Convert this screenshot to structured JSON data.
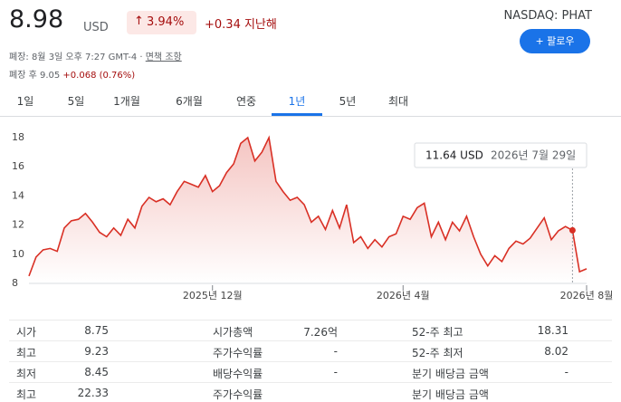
{
  "header": {
    "price": "8.98",
    "currency": "USD",
    "change_pct": "3.94%",
    "change_abs": "+0.34 지난해",
    "exchange": "NASDAQ: PHAT",
    "follow": "팔로우",
    "closed": "폐장: 8월 3일 오후 7:27 GMT-4",
    "disclaimer": "면책 조항",
    "after_hours_label": "폐장 후",
    "after_hours_price": "9.05",
    "after_hours_change": "+0.068 (0.76%)"
  },
  "tabs": [
    "1일",
    "5일",
    "1개월",
    "6개월",
    "연중",
    "1년",
    "5년",
    "최대"
  ],
  "selected_tab": 5,
  "chart_data": {
    "type": "line",
    "color": "#d93025",
    "values": [
      8.5,
      9.8,
      10.3,
      10.4,
      10.2,
      11.8,
      12.3,
      12.4,
      12.8,
      12.2,
      11.5,
      11.2,
      11.8,
      11.3,
      12.4,
      11.8,
      13.3,
      13.9,
      13.6,
      13.8,
      13.4,
      14.3,
      15.0,
      14.8,
      14.6,
      15.4,
      14.3,
      14.7,
      15.6,
      16.2,
      17.6,
      18.0,
      16.4,
      17.0,
      18.0,
      15.0,
      14.3,
      13.7,
      13.9,
      13.4,
      12.2,
      12.6,
      11.7,
      13.0,
      11.8,
      13.4,
      10.8,
      11.2,
      10.4,
      11.0,
      10.5,
      11.2,
      11.4,
      12.6,
      12.4,
      13.2,
      13.5,
      11.2,
      12.2,
      11.0,
      12.2,
      11.6,
      12.6,
      11.2,
      10.0,
      9.2,
      9.9,
      9.5,
      10.4,
      10.9,
      10.7,
      11.1,
      11.8,
      12.5,
      11.0,
      11.6,
      11.9,
      11.64,
      8.8,
      9.0
    ],
    "xlim": [
      0,
      79
    ],
    "xticks": [
      {
        "value": 26,
        "label": "2025년 12월"
      },
      {
        "value": 53,
        "label": "2026년 4월"
      },
      {
        "value": 79,
        "label": "2026년 8월"
      }
    ],
    "ylim": [
      8,
      18
    ],
    "yticks": [
      8,
      10,
      12,
      14,
      16,
      18
    ],
    "tooltip": {
      "index": 77,
      "value_label": "11.64 USD",
      "date": "2026년 7월 29일"
    }
  },
  "stats": [
    [
      {
        "label": "시가",
        "value": "8.75"
      },
      {
        "label": "시가총액",
        "value": "7.26억"
      },
      {
        "label": "52-주 최고",
        "value": "18.31"
      }
    ],
    [
      {
        "label": "최고",
        "value": "9.23"
      },
      {
        "label": "주가수익률",
        "value": "-"
      },
      {
        "label": "52-주 최저",
        "value": "8.02"
      }
    ],
    [
      {
        "label": "최저",
        "value": "8.45"
      },
      {
        "label": "배당수익률",
        "value": "-"
      },
      {
        "label": "분기 배당금 금액",
        "value": "-"
      }
    ],
    [
      {
        "label": "최고",
        "value": "22.33"
      },
      {
        "label": "주가수익률"
      },
      {
        "label": "분기 배당금 금액"
      }
    ]
  ]
}
